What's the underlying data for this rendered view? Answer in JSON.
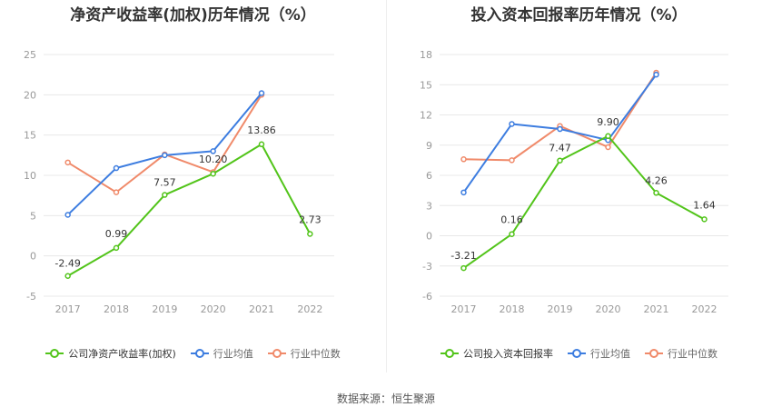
{
  "colors": {
    "company": "#52c41a",
    "avg": "#3d7de0",
    "median": "#f08a6a"
  },
  "source": "数据来源：恒生聚源",
  "chart_data": [
    {
      "type": "line",
      "title": "净资产收益率(加权)历年情况（%）",
      "categories": [
        "2017",
        "2018",
        "2019",
        "2020",
        "2021",
        "2022"
      ],
      "ylim": [
        -5,
        25
      ],
      "yticks": [
        -5,
        0,
        5,
        10,
        15,
        20,
        25
      ],
      "grid": true,
      "legend_position": "bottom",
      "series": [
        {
          "name": "公司净资产收益率(加权)",
          "key": "company",
          "values": [
            -2.49,
            0.99,
            7.57,
            10.2,
            13.86,
            2.73
          ],
          "labels": [
            "-2.49",
            "0.99",
            "7.57",
            "10.20",
            "13.86",
            "2.73"
          ]
        },
        {
          "name": "行业均值",
          "key": "avg",
          "values": [
            5.1,
            10.9,
            12.5,
            13.0,
            20.2,
            null
          ]
        },
        {
          "name": "行业中位数",
          "key": "median",
          "values": [
            11.6,
            7.9,
            12.6,
            10.4,
            20.0,
            null
          ]
        }
      ]
    },
    {
      "type": "line",
      "title": "投入资本回报率历年情况（%）",
      "categories": [
        "2017",
        "2018",
        "2019",
        "2020",
        "2021",
        "2022"
      ],
      "ylim": [
        -6,
        18
      ],
      "yticks": [
        -6,
        -3,
        0,
        3,
        6,
        9,
        12,
        15,
        18
      ],
      "grid": true,
      "legend_position": "bottom",
      "series": [
        {
          "name": "公司投入资本回报率",
          "key": "company",
          "values": [
            -3.21,
            0.16,
            7.47,
            9.9,
            4.26,
            1.64
          ],
          "labels": [
            "-3.21",
            "0.16",
            "7.47",
            "9.90",
            "4.26",
            "1.64"
          ]
        },
        {
          "name": "行业均值",
          "key": "avg",
          "values": [
            4.3,
            11.1,
            10.6,
            9.5,
            16.0,
            null
          ]
        },
        {
          "name": "行业中位数",
          "key": "median",
          "values": [
            7.6,
            7.5,
            10.9,
            8.8,
            16.2,
            null
          ]
        }
      ]
    }
  ]
}
